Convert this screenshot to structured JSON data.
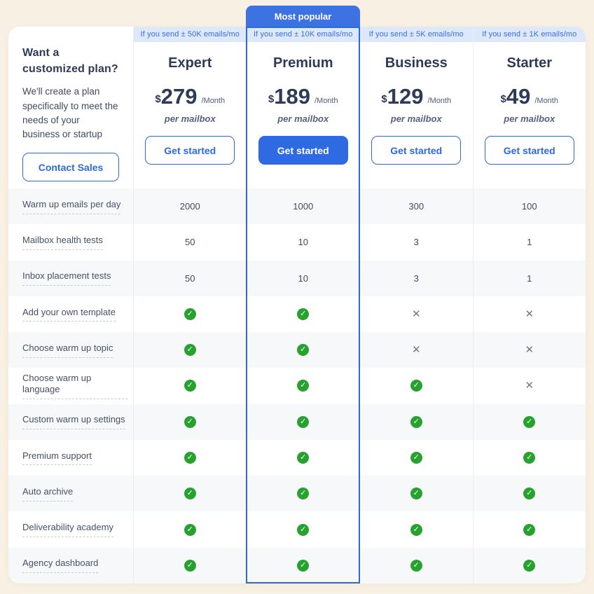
{
  "badge": "Most popular",
  "sidebar": {
    "title": "Want a customized plan?",
    "description": "We'll create a plan specifically to meet the needs of your business or startup",
    "cta": "Contact Sales"
  },
  "plans": [
    {
      "id": "expert",
      "ribbon": "If you send ± 50K emails/mo",
      "name": "Expert",
      "currency": "$",
      "price": "279",
      "period": "/Month",
      "per": "per mailbox",
      "cta": "Get started",
      "featured": false
    },
    {
      "id": "premium",
      "ribbon": "If you send ± 10K emails/mo",
      "name": "Premium",
      "currency": "$",
      "price": "189",
      "period": "/Month",
      "per": "per mailbox",
      "cta": "Get started",
      "featured": true
    },
    {
      "id": "business",
      "ribbon": "If you send ± 5K emails/mo",
      "name": "Business",
      "currency": "$",
      "price": "129",
      "period": "/Month",
      "per": "per mailbox",
      "cta": "Get started",
      "featured": false
    },
    {
      "id": "starter",
      "ribbon": "If you send ± 1K emails/mo",
      "name": "Starter",
      "currency": "$",
      "price": "49",
      "period": "/Month",
      "per": "per mailbox",
      "cta": "Get started",
      "featured": false
    }
  ],
  "features": [
    {
      "label": "Warm up emails per day",
      "values": [
        "2000",
        "1000",
        "300",
        "100"
      ]
    },
    {
      "label": "Mailbox health tests",
      "values": [
        "50",
        "10",
        "3",
        "1"
      ]
    },
    {
      "label": "Inbox placement tests",
      "values": [
        "50",
        "10",
        "3",
        "1"
      ]
    },
    {
      "label": "Add your own template",
      "values": [
        "check",
        "check",
        "cross",
        "cross"
      ]
    },
    {
      "label": "Choose warm up topic",
      "values": [
        "check",
        "check",
        "cross",
        "cross"
      ]
    },
    {
      "label": "Choose warm up language",
      "values": [
        "check",
        "check",
        "check",
        "cross"
      ]
    },
    {
      "label": "Custom warm up settings",
      "values": [
        "check",
        "check",
        "check",
        "check"
      ]
    },
    {
      "label": "Premium support",
      "values": [
        "check",
        "check",
        "check",
        "check"
      ]
    },
    {
      "label": "Auto archive",
      "values": [
        "check",
        "check",
        "check",
        "check"
      ]
    },
    {
      "label": "Deliverability academy",
      "values": [
        "check",
        "check",
        "check",
        "check"
      ]
    },
    {
      "label": "Agency dashboard",
      "values": [
        "check",
        "check",
        "check",
        "check"
      ]
    }
  ],
  "icons": {
    "check": "✓",
    "cross": "✕"
  },
  "colors": {
    "background": "#f8f0e2",
    "accent_blue": "#2c69e0",
    "badge_blue": "#3d72e3",
    "ribbon_bg": "#dde8fa",
    "heading_navy": "#2e3b58",
    "check_green": "#27a22f",
    "cross_gray": "#6f7a8b",
    "row_stripe": "#f7f8fa"
  }
}
